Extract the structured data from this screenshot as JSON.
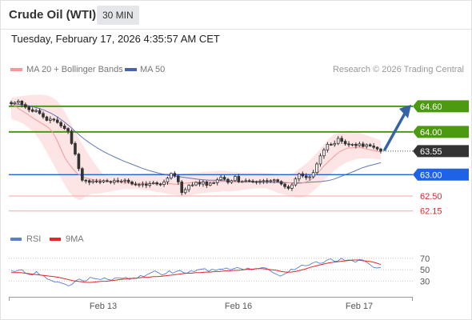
{
  "header": {
    "title": "Crude Oil (WTI)",
    "timeframe": "30 MIN",
    "timestamp": "Tuesday, February 17, 2026 4:35:57 AM CET"
  },
  "legend": {
    "ma20_bb": "MA 20 + Bollinger Bands",
    "ma50": "MA 50",
    "credit": "Research © 2026 Trading Central",
    "rsi": "RSI",
    "rsi_ma": "9MA"
  },
  "colors": {
    "candle": "#333333",
    "bollinger_fill": "#fde0e0",
    "ma20": "#f29a9a",
    "ma50": "#4a62a8",
    "resistance": "#4c9a0f",
    "pivot": "#1e63e6",
    "support": "#f5a5a5",
    "support_text": "#e0282b",
    "price": "#333333",
    "arrow": "#3563a6",
    "rsi": "#5a7fd1",
    "rsi_ma": "#e0282b"
  },
  "chart_data": {
    "type": "candlestick",
    "timeframe": "30 MIN",
    "price_ylim": [
      61.92,
      65.14
    ],
    "x_labels": [
      "Feb 13",
      "Feb 16",
      "Feb 17"
    ],
    "current_price": 63.55,
    "levels": [
      {
        "label": "64.60",
        "value": 64.6,
        "kind": "resistance"
      },
      {
        "label": "64.00",
        "value": 64.0,
        "kind": "resistance"
      },
      {
        "label": "63.55",
        "value": 63.55,
        "kind": "price"
      },
      {
        "label": "63.00",
        "value": 63.0,
        "kind": "pivot"
      },
      {
        "label": "62.50",
        "value": 62.5,
        "kind": "support"
      },
      {
        "label": "62.15",
        "value": 62.15,
        "kind": "support"
      }
    ],
    "projection": {
      "from": 63.55,
      "to": 64.6
    },
    "price_close": [
      64.66,
      64.69,
      64.72,
      64.64,
      64.58,
      64.52,
      64.48,
      64.5,
      64.43,
      64.35,
      64.27,
      64.3,
      64.28,
      64.22,
      64.14,
      64.08,
      64.02,
      63.73,
      63.48,
      63.14,
      62.87,
      62.86,
      62.82,
      62.85,
      62.84,
      62.83,
      62.86,
      62.84,
      62.82,
      62.86,
      62.84,
      62.85,
      62.87,
      62.83,
      62.78,
      62.76,
      62.77,
      62.78,
      62.75,
      62.79,
      62.81,
      62.78,
      62.77,
      62.83,
      62.92,
      63.03,
      62.97,
      62.83,
      62.58,
      62.65,
      62.75,
      62.76,
      62.82,
      62.78,
      62.83,
      62.75,
      62.8,
      62.81,
      62.88,
      62.94,
      62.89,
      62.82,
      62.86,
      62.96,
      62.83,
      62.84,
      62.86,
      62.85,
      62.84,
      62.83,
      62.85,
      62.86,
      62.84,
      62.86,
      62.88,
      62.84,
      62.78,
      62.72,
      62.68,
      62.76,
      62.9,
      63.02,
      62.97,
      62.93,
      62.95,
      63.05,
      63.25,
      63.44,
      63.58,
      63.71,
      63.7,
      63.73,
      63.85,
      63.78,
      63.72,
      63.7,
      63.71,
      63.68,
      63.72,
      63.66,
      63.7,
      63.67,
      63.64,
      63.6,
      63.55
    ],
    "ma20": [
      64.66,
      64.6,
      64.53,
      64.47,
      64.41,
      64.34,
      64.28,
      64.22,
      64.16,
      64.1,
      63.99,
      63.81,
      63.59,
      63.38,
      63.24,
      63.12,
      63.02,
      62.96,
      62.92,
      62.9,
      62.88,
      62.87,
      62.86,
      62.85,
      62.84,
      62.84,
      62.83,
      62.82,
      62.81,
      62.8,
      62.79,
      62.8,
      62.8,
      62.8,
      62.79,
      62.79,
      62.79,
      62.79,
      62.79,
      62.78,
      62.78,
      62.79,
      62.8,
      62.81,
      62.82,
      62.82,
      62.83,
      62.83,
      62.83,
      62.84,
      62.84,
      62.84,
      62.84,
      62.84,
      62.84,
      62.84,
      62.84,
      62.84,
      62.84,
      62.84,
      62.84,
      62.84,
      62.84,
      62.84,
      62.84,
      62.83,
      62.82,
      62.81,
      62.8,
      62.79,
      62.8,
      62.83,
      62.87,
      62.95,
      63.05,
      63.17,
      63.27,
      63.36,
      63.45,
      63.53,
      63.58,
      63.62,
      63.63,
      63.64,
      63.64,
      63.61,
      63.59,
      63.57,
      63.55,
      63.53
    ],
    "bb_upper": [
      64.8,
      64.82,
      64.84,
      64.86,
      64.87,
      64.87,
      64.86,
      64.82,
      64.72,
      64.54,
      64.28,
      64.03,
      63.79,
      63.56,
      63.35,
      63.16,
      62.99,
      62.97,
      62.97,
      62.99,
      63.0,
      63.02,
      63.02,
      63.03,
      63.04,
      63.04,
      63.04,
      63.03,
      63.02,
      63.02,
      63.03,
      63.04,
      63.05,
      63.06,
      63.07,
      63.08,
      63.09,
      63.09,
      63.07,
      63.06,
      63.05,
      63.05,
      63.05,
      63.05,
      63.04,
      63.03,
      63.0,
      62.99,
      63.0,
      63.05,
      63.15,
      63.25,
      63.38,
      63.52,
      63.68,
      63.84,
      63.95,
      64.0,
      64.02,
      64.02,
      64.0,
      63.95,
      63.9,
      63.85,
      63.8
    ],
    "bb_lower": [
      64.3,
      64.26,
      64.2,
      64.1,
      63.98,
      63.8,
      63.56,
      63.32,
      63.07,
      62.82,
      62.6,
      62.45,
      62.4,
      62.5,
      62.55,
      62.55,
      62.58,
      62.6,
      62.63,
      62.65,
      62.66,
      62.66,
      62.66,
      62.64,
      62.63,
      62.6,
      62.58,
      62.55,
      62.53,
      62.52,
      62.51,
      62.52,
      62.54,
      62.56,
      62.58,
      62.59,
      62.6,
      62.61,
      62.61,
      62.62,
      62.64,
      62.66,
      62.67,
      62.68,
      62.68,
      62.64,
      62.58,
      62.54,
      62.51,
      62.48,
      62.46,
      62.49,
      62.58,
      62.7,
      62.84,
      62.98,
      63.1,
      63.2,
      63.28,
      63.33,
      63.37,
      63.38,
      63.38,
      63.37,
      63.35
    ],
    "ma50": [
      64.66,
      64.65,
      64.63,
      64.6,
      64.56,
      64.51,
      64.44,
      64.35,
      64.24,
      64.11,
      63.97,
      63.84,
      63.73,
      63.63,
      63.54,
      63.46,
      63.39,
      63.32,
      63.26,
      63.2,
      63.14,
      63.09,
      63.05,
      63.01,
      62.98,
      62.96,
      62.94,
      62.92,
      62.9,
      62.88,
      62.87,
      62.87,
      62.86,
      62.85,
      62.84,
      62.83,
      62.83,
      62.82,
      62.82,
      62.82,
      62.82,
      62.81,
      62.81,
      62.81,
      62.81,
      62.82,
      62.83,
      62.84,
      62.86,
      62.9,
      62.96,
      63.02,
      63.08,
      63.15,
      63.2,
      63.24,
      63.28
    ],
    "rsi_ylim": [
      10,
      85
    ],
    "rsi_ticks": [
      70,
      50,
      30
    ],
    "rsi": [
      48,
      47,
      49,
      50,
      44,
      42,
      41,
      47,
      41,
      40,
      34,
      32,
      29,
      29,
      27,
      25,
      22,
      25,
      31,
      34,
      31,
      31,
      37,
      35,
      34,
      33,
      36,
      33,
      32,
      36,
      36,
      35,
      37,
      33,
      36,
      35,
      40,
      38,
      42,
      45,
      48,
      45,
      41,
      43,
      48,
      44,
      47,
      49,
      45,
      44,
      48,
      47,
      50,
      51,
      52,
      47,
      51,
      49,
      51,
      51,
      53,
      50,
      52,
      54,
      52,
      50,
      53,
      50,
      52,
      52,
      54,
      53,
      49,
      45,
      42,
      39,
      42,
      45,
      51,
      50,
      54,
      58,
      57,
      58,
      62,
      64,
      61,
      62,
      67,
      69,
      65,
      65,
      70,
      66,
      67,
      66,
      63,
      68,
      67,
      63,
      59,
      54,
      53,
      54
    ],
    "rsi_ma": [
      45,
      45,
      45,
      44,
      43,
      42,
      41,
      40,
      39,
      38,
      37,
      35,
      33,
      31,
      30,
      29,
      28,
      28,
      29,
      30,
      30,
      31,
      32,
      33,
      34,
      35,
      35,
      36,
      37,
      37,
      38,
      38,
      39,
      40,
      41,
      42,
      43,
      44,
      44,
      45,
      45,
      46,
      46,
      47,
      47,
      48,
      48,
      49,
      49,
      50,
      51,
      51,
      52,
      52,
      51,
      50,
      49,
      47,
      46,
      46,
      47,
      49,
      51,
      54,
      56,
      58,
      60,
      62,
      63,
      64,
      65,
      66,
      67,
      67,
      66,
      65,
      64,
      62,
      59
    ]
  }
}
